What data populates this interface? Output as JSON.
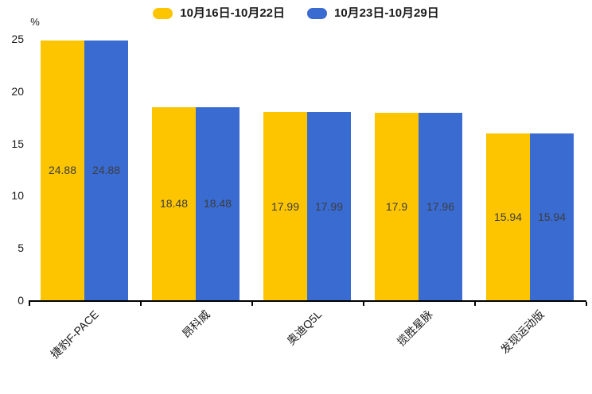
{
  "chart_data": {
    "type": "bar",
    "title": "",
    "unit_label": "%",
    "categories": [
      "捷豹F-PACE",
      "昂科威",
      "奥迪Q5L",
      "揽胜星脉",
      "发现运动版"
    ],
    "series": [
      {
        "name": "10月16日-10月22日",
        "color": "#FDC500",
        "values": [
          24.88,
          18.48,
          17.99,
          17.9,
          15.94
        ]
      },
      {
        "name": "10月23日-10月29日",
        "color": "#3A6BD1",
        "values": [
          24.88,
          18.48,
          17.99,
          17.96,
          15.94
        ]
      }
    ],
    "yticks": [
      0,
      5,
      10,
      15,
      20,
      25
    ],
    "ylim": [
      0,
      25
    ],
    "grid": false,
    "legend_position": "top",
    "value_labels": "centered-inside-bars",
    "value_label_color": "#3d3d3d",
    "axis_color": "#000000"
  }
}
